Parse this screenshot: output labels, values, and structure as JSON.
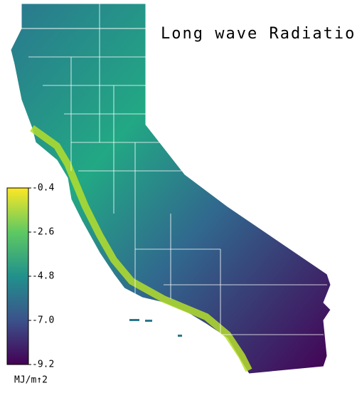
{
  "title": "Long wave Radiation",
  "colorbar": {
    "label": "MJ/m↑2",
    "lim": [
      -9.2,
      -0.4
    ],
    "ticks": [
      -0.4,
      -2.6,
      -4.8,
      {
        "value": -7,
        "label": "-7.0"
      },
      -9.2
    ]
  }
}
